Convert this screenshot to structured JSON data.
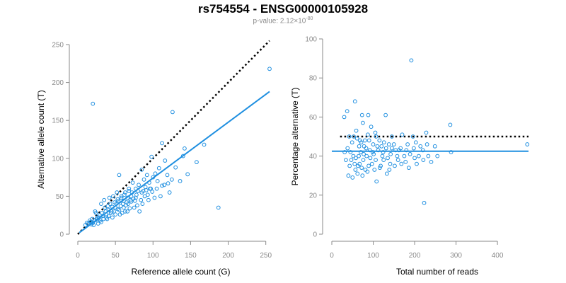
{
  "page": {
    "title": "rs754554 - ENSG00000105928",
    "subtitle": {
      "prefix": "p-value: 2.12×10",
      "exponent": "-80"
    }
  },
  "colors": {
    "points": "#1f8fe0",
    "fit_line": "#1f8fe0",
    "reference_line": "#000000",
    "axis": "#8a8a8a"
  },
  "chart_data": [
    {
      "type": "scatter",
      "xlabel": "Reference allele count (G)",
      "ylabel": "Alternative allele count (T)",
      "xlim": [
        0,
        255
      ],
      "ylim": [
        0,
        250
      ],
      "xticks": [
        0,
        50,
        100,
        150,
        200,
        250
      ],
      "yticks": [
        0,
        50,
        100,
        150,
        200,
        250
      ],
      "reference_line": {
        "style": "dotted",
        "from": [
          0,
          0
        ],
        "to": [
          255,
          255
        ]
      },
      "fit_line": {
        "style": "solid",
        "from": [
          2,
          2
        ],
        "to": [
          255,
          188
        ]
      },
      "points": [
        [
          20,
          172
        ],
        [
          255,
          218
        ],
        [
          126,
          161
        ],
        [
          187,
          35
        ],
        [
          168,
          118
        ],
        [
          142,
          113
        ],
        [
          112,
          120
        ],
        [
          140,
          103
        ],
        [
          98,
          102
        ],
        [
          55,
          78
        ],
        [
          108,
          87
        ],
        [
          130,
          88
        ],
        [
          158,
          95
        ],
        [
          116,
          97
        ],
        [
          119,
          78
        ],
        [
          85,
          85
        ],
        [
          146,
          79
        ],
        [
          120,
          67
        ],
        [
          136,
          70
        ],
        [
          110,
          50
        ],
        [
          97,
          60
        ],
        [
          73,
          68
        ],
        [
          90,
          62
        ],
        [
          80,
          57
        ],
        [
          85,
          55
        ],
        [
          77,
          48
        ],
        [
          70,
          45
        ],
        [
          65,
          42
        ],
        [
          60,
          40
        ],
        [
          66,
          30
        ],
        [
          55,
          32
        ],
        [
          50,
          35
        ],
        [
          45,
          30
        ],
        [
          38,
          26
        ],
        [
          33,
          24
        ],
        [
          28,
          22
        ],
        [
          25,
          20
        ],
        [
          22,
          18
        ],
        [
          20,
          15
        ],
        [
          18,
          13
        ],
        [
          16,
          18
        ],
        [
          14,
          14
        ],
        [
          12,
          15
        ],
        [
          10,
          12
        ],
        [
          23,
          30
        ],
        [
          31,
          40
        ],
        [
          35,
          45
        ],
        [
          42,
          48
        ],
        [
          47,
          50
        ],
        [
          52,
          55
        ],
        [
          58,
          48
        ],
        [
          62,
          52
        ],
        [
          68,
          60
        ],
        [
          72,
          55
        ],
        [
          88,
          72
        ],
        [
          92,
          78
        ],
        [
          95,
          68
        ],
        [
          100,
          75
        ],
        [
          103,
          80
        ],
        [
          106,
          70
        ],
        [
          125,
          72
        ],
        [
          27,
          14
        ],
        [
          30,
          18
        ],
        [
          34,
          20
        ],
        [
          38,
          22
        ],
        [
          41,
          24
        ],
        [
          44,
          28
        ],
        [
          48,
          30
        ],
        [
          53,
          33
        ],
        [
          57,
          37
        ],
        [
          61,
          35
        ],
        [
          64,
          38
        ],
        [
          67,
          40
        ],
        [
          71,
          43
        ],
        [
          74,
          47
        ],
        [
          78,
          52
        ],
        [
          82,
          30
        ],
        [
          86,
          40
        ],
        [
          56,
          26
        ],
        [
          59,
          28
        ],
        [
          63,
          30
        ],
        [
          69,
          34
        ],
        [
          75,
          35
        ],
        [
          79,
          38
        ],
        [
          84,
          45
        ],
        [
          89,
          50
        ],
        [
          93,
          52
        ],
        [
          96,
          60
        ],
        [
          41,
          32
        ],
        [
          46,
          36
        ],
        [
          51,
          40
        ],
        [
          54,
          44
        ],
        [
          37,
          30
        ],
        [
          29,
          25
        ],
        [
          26,
          22
        ],
        [
          24,
          28
        ],
        [
          32,
          28
        ],
        [
          36,
          35
        ],
        [
          40,
          37
        ],
        [
          43,
          40
        ],
        [
          49,
          42
        ],
        [
          53,
          46
        ],
        [
          58,
          50
        ],
        [
          63,
          55
        ],
        [
          68,
          57
        ],
        [
          115,
          65
        ],
        [
          122,
          55
        ],
        [
          102,
          48
        ],
        [
          94,
          45
        ],
        [
          77,
          60
        ],
        [
          81,
          65
        ],
        [
          21,
          12
        ],
        [
          19,
          20
        ],
        [
          17,
          16
        ],
        [
          27,
          18
        ],
        [
          31,
          16
        ],
        [
          39,
          20
        ],
        [
          46,
          22
        ],
        [
          50,
          26
        ],
        [
          61,
          44
        ],
        [
          66,
          48
        ],
        [
          71,
          50
        ],
        [
          76,
          44
        ],
        [
          87,
          57
        ],
        [
          91,
          58
        ],
        [
          99,
          56
        ],
        [
          105,
          60
        ],
        [
          112,
          64
        ]
      ]
    },
    {
      "type": "scatter",
      "xlabel": "Total number of reads",
      "ylabel": "Percentage alternative (T)",
      "xlim": [
        0,
        475
      ],
      "ylim": [
        0,
        100
      ],
      "xticks": [
        0,
        100,
        200,
        300,
        400
      ],
      "yticks": [
        0,
        20,
        40,
        60,
        80,
        100
      ],
      "reference_line": {
        "style": "dotted",
        "y": 50,
        "x_range": [
          20,
          475
        ]
      },
      "fit_line": {
        "style": "solid",
        "y": 42.5,
        "x_range": [
          0,
          475
        ]
      },
      "points": [
        [
          192,
          89
        ],
        [
          30,
          60
        ],
        [
          37,
          63
        ],
        [
          56,
          68
        ],
        [
          88,
          61
        ],
        [
          73,
          61
        ],
        [
          130,
          61
        ],
        [
          286,
          56
        ],
        [
          75,
          57
        ],
        [
          59,
          53
        ],
        [
          42,
          50
        ],
        [
          53,
          50
        ],
        [
          61,
          49
        ],
        [
          68,
          48
        ],
        [
          80,
          48
        ],
        [
          90,
          48
        ],
        [
          100,
          46
        ],
        [
          110,
          45
        ],
        [
          120,
          45
        ],
        [
          131,
          44
        ],
        [
          145,
          44
        ],
        [
          162,
          43
        ],
        [
          180,
          43
        ],
        [
          198,
          44
        ],
        [
          214,
          45
        ],
        [
          230,
          46
        ],
        [
          249,
          45
        ],
        [
          288,
          42
        ],
        [
          472,
          46
        ],
        [
          47,
          38
        ],
        [
          55,
          36
        ],
        [
          63,
          35
        ],
        [
          72,
          34
        ],
        [
          81,
          33
        ],
        [
          89,
          35
        ],
        [
          97,
          36
        ],
        [
          106,
          38
        ],
        [
          116,
          34
        ],
        [
          125,
          38
        ],
        [
          139,
          33
        ],
        [
          152,
          35
        ],
        [
          168,
          36
        ],
        [
          186,
          34
        ],
        [
          205,
          36
        ],
        [
          221,
          38
        ],
        [
          240,
          37
        ],
        [
          38,
          44
        ],
        [
          45,
          42
        ],
        [
          52,
          40
        ],
        [
          58,
          39
        ],
        [
          65,
          40
        ],
        [
          70,
          42
        ],
        [
          77,
          41
        ],
        [
          84,
          40
        ],
        [
          93,
          39
        ],
        [
          101,
          41
        ],
        [
          40,
          30
        ],
        [
          50,
          29
        ],
        [
          62,
          31
        ],
        [
          74,
          30
        ],
        [
          86,
          32
        ],
        [
          108,
          27
        ],
        [
          133,
          31
        ],
        [
          223,
          16
        ],
        [
          145,
          50
        ],
        [
          170,
          51
        ],
        [
          196,
          50
        ],
        [
          228,
          52
        ],
        [
          95,
          55
        ],
        [
          105,
          52
        ],
        [
          115,
          48
        ],
        [
          126,
          47
        ],
        [
          138,
          46
        ],
        [
          150,
          46
        ],
        [
          158,
          40
        ],
        [
          175,
          40
        ],
        [
          189,
          41
        ],
        [
          210,
          40
        ],
        [
          233,
          40
        ],
        [
          255,
          40
        ],
        [
          66,
          45
        ],
        [
          78,
          45
        ],
        [
          83,
          44
        ],
        [
          92,
          43
        ],
        [
          99,
          42
        ],
        [
          112,
          43
        ],
        [
          122,
          40
        ],
        [
          135,
          39
        ],
        [
          34,
          38
        ],
        [
          43,
          35
        ],
        [
          57,
          33
        ],
        [
          67,
          36
        ],
        [
          76,
          38
        ],
        [
          103,
          33
        ],
        [
          118,
          35
        ],
        [
          141,
          36
        ],
        [
          160,
          38
        ],
        [
          178,
          37
        ],
        [
          200,
          39
        ],
        [
          31,
          42
        ],
        [
          49,
          47
        ],
        [
          71,
          47
        ],
        [
          87,
          51
        ],
        [
          107,
          50
        ],
        [
          124,
          42
        ],
        [
          142,
          41
        ],
        [
          154,
          43
        ],
        [
          166,
          44
        ],
        [
          183,
          46
        ],
        [
          203,
          47
        ],
        [
          220,
          43
        ]
      ]
    }
  ]
}
